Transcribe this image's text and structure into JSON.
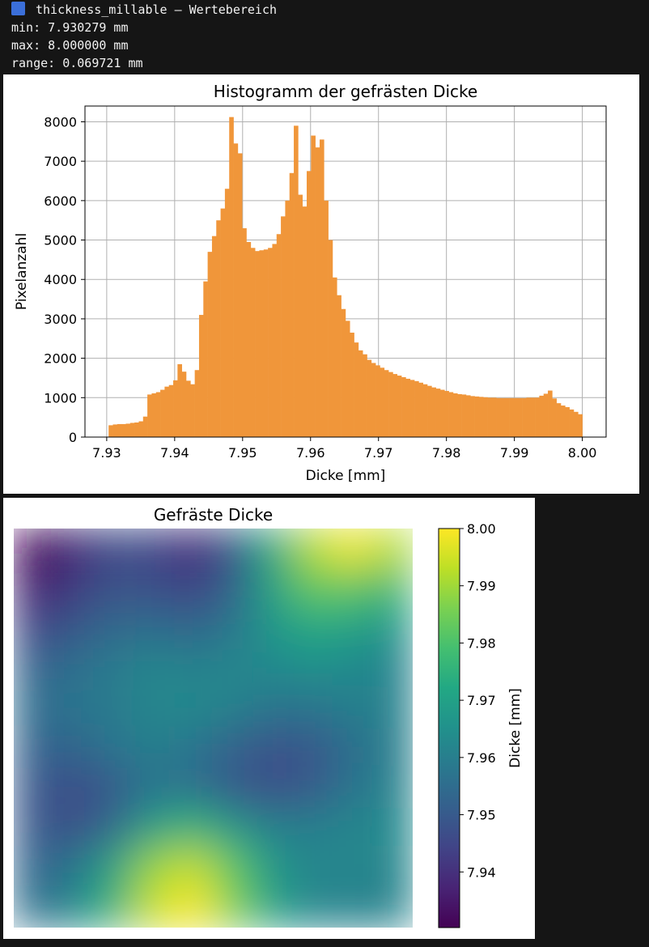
{
  "console": {
    "icon": "blue-square-icon",
    "icon_color": "#3b6fd9",
    "title": "thickness_millable – Wertebereich",
    "min_line": "min: 7.930279 mm",
    "max_line": "max: 8.000000 mm",
    "range_line": "range: 0.069721 mm"
  },
  "chart_data": [
    {
      "type": "bar",
      "title": "Histogramm der gefrästen Dicke",
      "xlabel": "Dicke [mm]",
      "ylabel": "Pixelanzahl",
      "xlim": [
        7.9268,
        8.0035
      ],
      "ylim": [
        0,
        8400
      ],
      "xticks": [
        7.93,
        7.94,
        7.95,
        7.96,
        7.97,
        7.98,
        7.99,
        8.0
      ],
      "xtick_labels": [
        "7.93",
        "7.94",
        "7.95",
        "7.96",
        "7.97",
        "7.98",
        "7.99",
        "8.00"
      ],
      "yticks": [
        0,
        1000,
        2000,
        3000,
        4000,
        5000,
        6000,
        7000,
        8000
      ],
      "ytick_labels": [
        "0",
        "1000",
        "2000",
        "3000",
        "4000",
        "5000",
        "6000",
        "7000",
        "8000"
      ],
      "grid": true,
      "color": "#f0963a",
      "bin_start": 7.930279,
      "bin_end": 8.0,
      "values": [
        300,
        320,
        330,
        330,
        340,
        360,
        370,
        400,
        520,
        1080,
        1110,
        1140,
        1200,
        1280,
        1320,
        1440,
        1850,
        1660,
        1430,
        1340,
        1700,
        3100,
        3950,
        4700,
        5100,
        5500,
        5800,
        6300,
        8120,
        7450,
        7200,
        5300,
        4950,
        4800,
        4720,
        4740,
        4760,
        4800,
        4900,
        5150,
        5600,
        6000,
        6700,
        7900,
        6150,
        5850,
        6750,
        7650,
        7350,
        7550,
        6000,
        5000,
        4050,
        3600,
        3250,
        2950,
        2650,
        2400,
        2200,
        2100,
        1960,
        1880,
        1820,
        1760,
        1700,
        1650,
        1600,
        1560,
        1520,
        1480,
        1450,
        1420,
        1380,
        1340,
        1300,
        1260,
        1230,
        1200,
        1170,
        1140,
        1110,
        1090,
        1080,
        1060,
        1040,
        1030,
        1020,
        1010,
        1000,
        1000,
        990,
        990,
        990,
        990,
        990,
        990,
        990,
        1000,
        1000,
        1000,
        1050,
        1100,
        1180,
        980,
        860,
        800,
        760,
        700,
        640,
        580
      ]
    },
    {
      "type": "heatmap",
      "title": "Gefräste Dicke",
      "colorbar_label": "Dicke [mm]",
      "colormap": "viridis",
      "vmin": 7.930279,
      "vmax": 8.0,
      "colorbar_ticks": [
        8.0,
        7.99,
        7.98,
        7.97,
        7.96,
        7.95,
        7.94
      ],
      "colorbar_tick_labels": [
        "8.00",
        "7.99",
        "7.98",
        "7.97",
        "7.96",
        "7.95",
        "7.94"
      ],
      "grid_values": [
        [
          7.931,
          7.938,
          7.946,
          7.945,
          7.939,
          7.948,
          7.972,
          7.992,
          7.999,
          7.992
        ],
        [
          7.936,
          7.942,
          7.948,
          7.947,
          7.944,
          7.952,
          7.97,
          7.983,
          7.982,
          7.977
        ],
        [
          7.944,
          7.949,
          7.954,
          7.955,
          7.953,
          7.958,
          7.967,
          7.972,
          7.97,
          7.966
        ],
        [
          7.952,
          7.956,
          7.959,
          7.962,
          7.961,
          7.962,
          7.963,
          7.965,
          7.963,
          7.961
        ],
        [
          7.955,
          7.957,
          7.959,
          7.962,
          7.963,
          7.961,
          7.957,
          7.957,
          7.96,
          7.961
        ],
        [
          7.952,
          7.953,
          7.957,
          7.96,
          7.957,
          7.952,
          7.948,
          7.949,
          7.955,
          7.96
        ],
        [
          7.95,
          7.946,
          7.95,
          7.957,
          7.956,
          7.95,
          7.947,
          7.95,
          7.957,
          7.961
        ],
        [
          7.95,
          7.947,
          7.954,
          7.969,
          7.975,
          7.966,
          7.96,
          7.96,
          7.962,
          7.963
        ],
        [
          7.953,
          7.957,
          7.97,
          7.989,
          7.994,
          7.982,
          7.967,
          7.962,
          7.962,
          7.962
        ],
        [
          7.956,
          7.962,
          7.975,
          7.994,
          8.0,
          7.986,
          7.97,
          7.962,
          7.961,
          7.961
        ]
      ]
    }
  ]
}
